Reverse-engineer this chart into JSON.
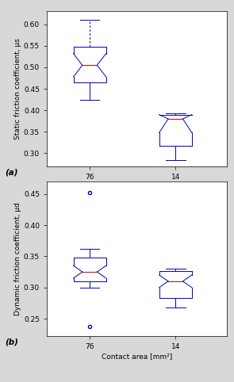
{
  "plot_a": {
    "ylabel": "Static friction coefficient, μs",
    "xlabel": "Contact area [mm²]",
    "label": "(a)",
    "ylim": [
      0.27,
      0.63
    ],
    "yticks": [
      0.3,
      0.35,
      0.4,
      0.45,
      0.5,
      0.55,
      0.6
    ],
    "xtick_labels": [
      "76",
      "14"
    ],
    "box1": {
      "median": 0.505,
      "q1": 0.465,
      "q3": 0.548,
      "whisker_low": 0.425,
      "whisker_high": 0.548,
      "dashed_high": 0.61,
      "notch_low": 0.478,
      "notch_high": 0.532,
      "has_dashed_upper": true,
      "outlier_low": null,
      "outlier_high": null
    },
    "box2": {
      "median": 0.38,
      "q1": 0.318,
      "q3": 0.39,
      "whisker_low": 0.284,
      "whisker_high": 0.393,
      "notch_low": 0.348,
      "notch_high": 0.39,
      "has_dashed_upper": false,
      "outlier_low": null,
      "outlier_high": null
    }
  },
  "plot_b": {
    "ylabel": "Dynamic friction coefficient, μd",
    "xlabel": "Contact area [mm²]",
    "label": "(b)",
    "ylim": [
      0.222,
      0.47
    ],
    "yticks": [
      0.25,
      0.3,
      0.35,
      0.4,
      0.45
    ],
    "xtick_labels": [
      "76",
      "14"
    ],
    "box1": {
      "median": 0.325,
      "q1": 0.31,
      "q3": 0.348,
      "whisker_low": 0.3,
      "whisker_high": 0.362,
      "notch_low": 0.315,
      "notch_high": 0.335,
      "has_dashed_upper": false,
      "outlier_low": 0.238,
      "outlier_high": 0.452
    },
    "box2": {
      "median": 0.31,
      "q1": 0.283,
      "q3": 0.326,
      "whisker_low": 0.268,
      "whisker_high": 0.33,
      "notch_low": 0.3,
      "notch_high": 0.32,
      "has_dashed_upper": false,
      "outlier_low": null,
      "outlier_high": null
    }
  },
  "box_color": "#0000BB",
  "median_color": "#CC0000",
  "background_color": "#D8D8D8",
  "axes_background": "#FFFFFF"
}
